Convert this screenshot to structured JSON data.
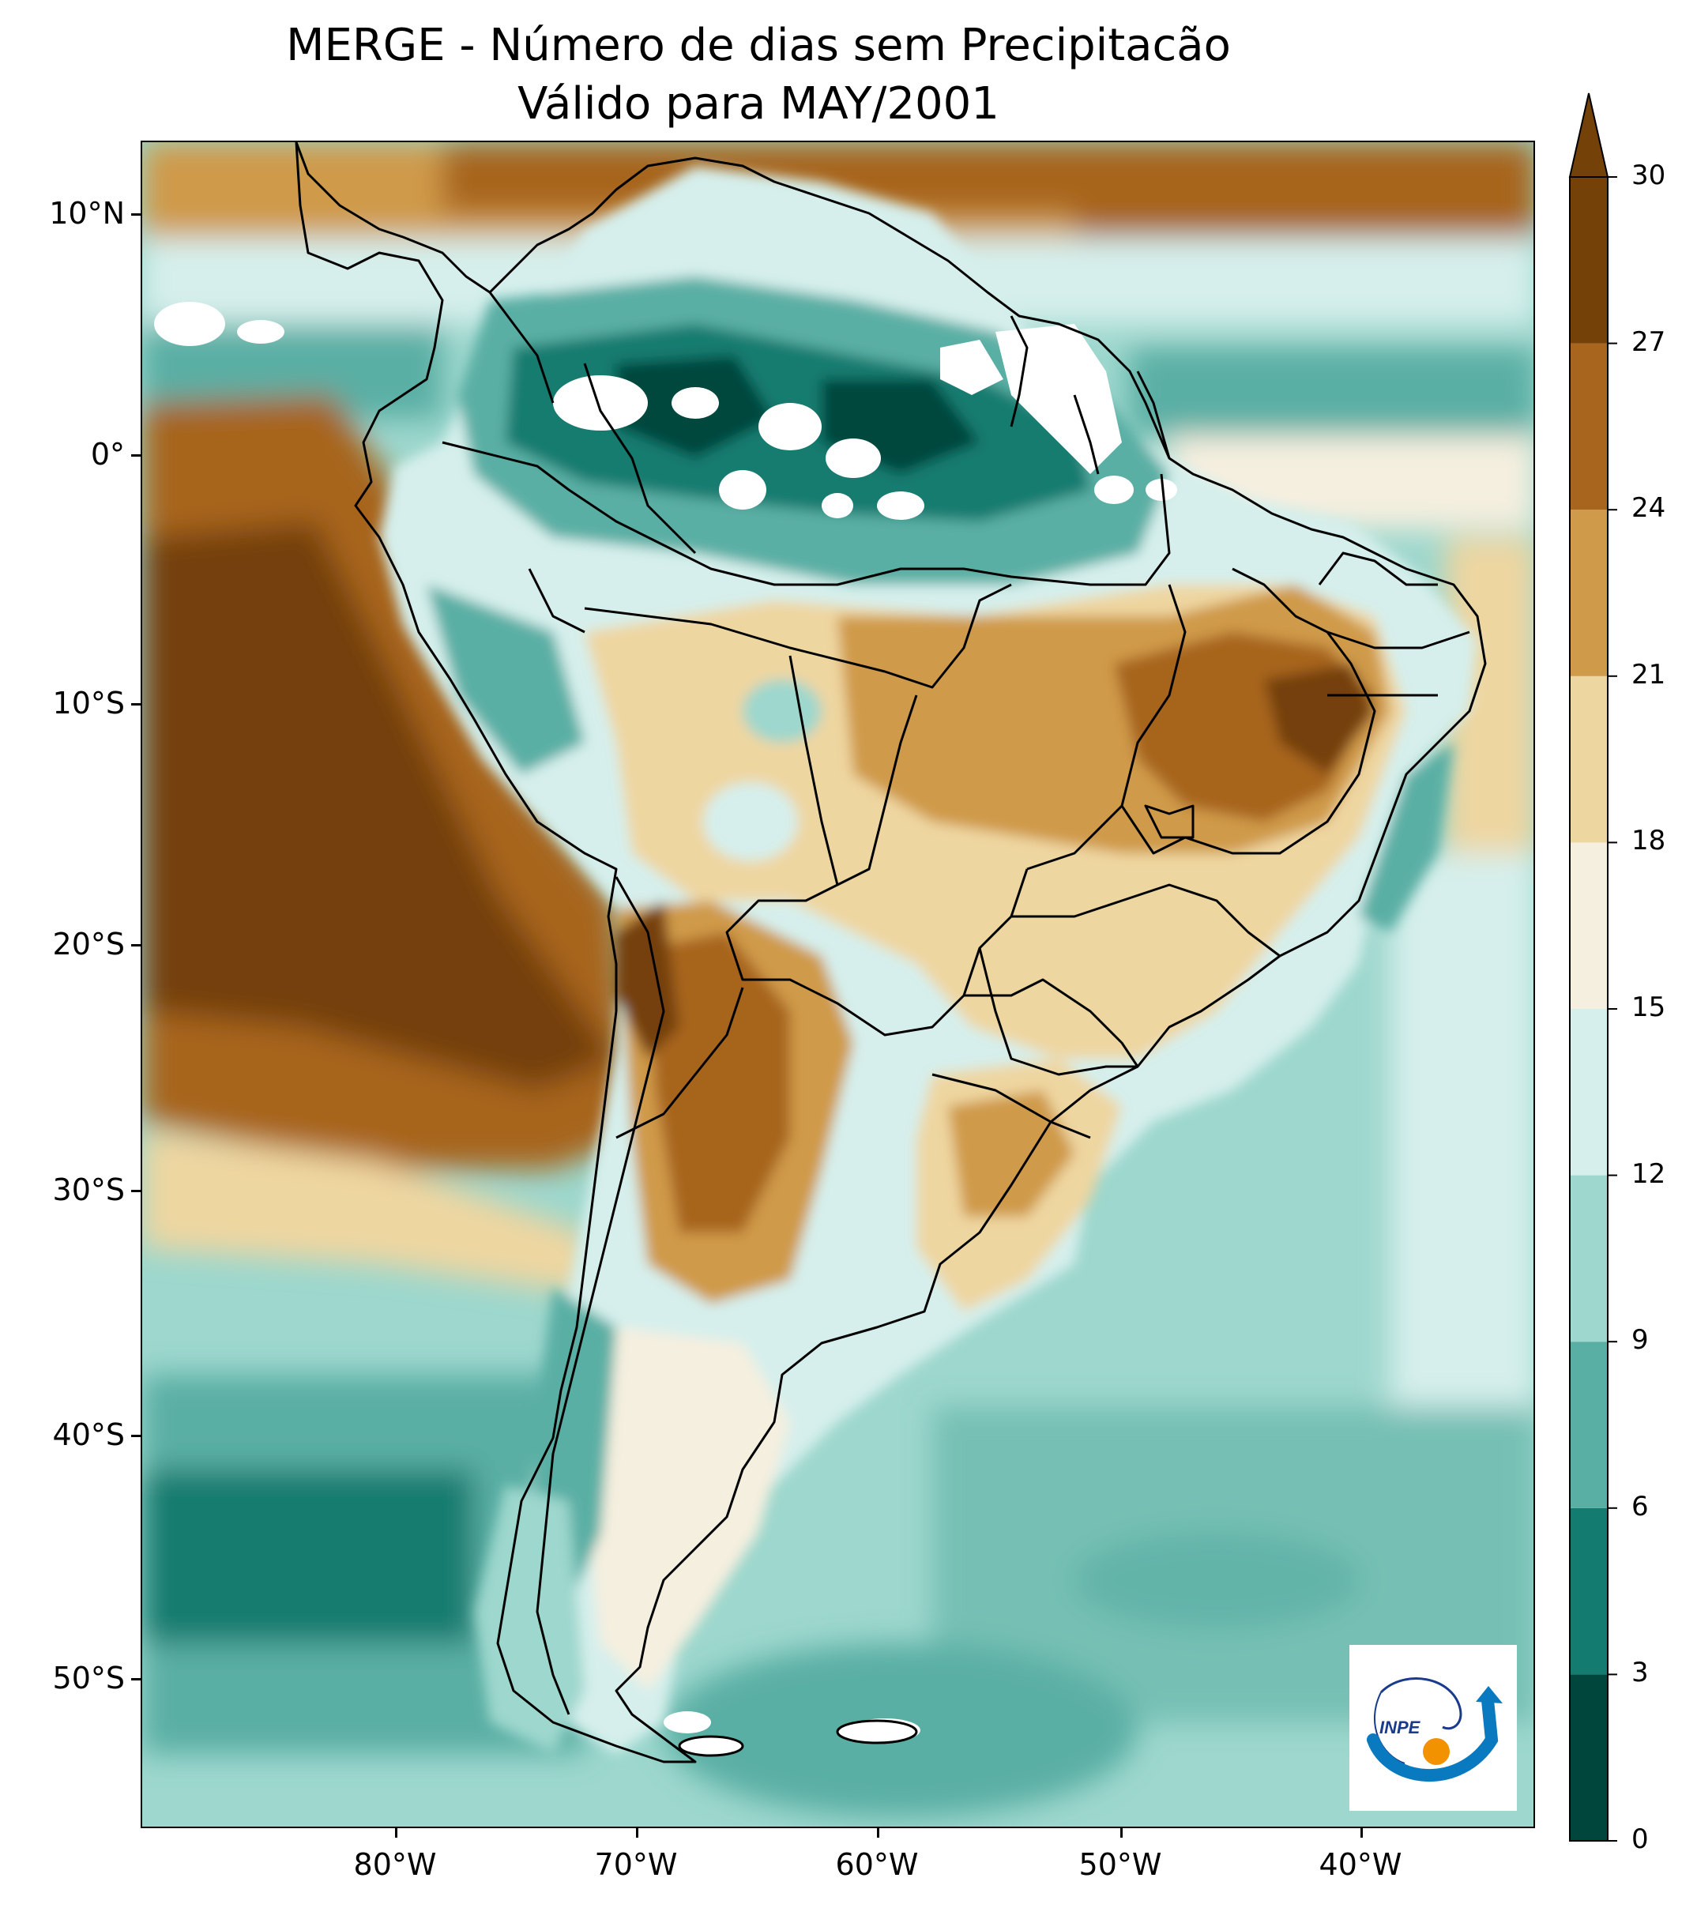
{
  "title": {
    "line1": "MERGE - Número de dias sem Precipitacão",
    "line2": "Válido para MAY/2001"
  },
  "axes": {
    "lat_labels": [
      "10°N",
      "0°",
      "10°S",
      "20°S",
      "30°S",
      "40°S",
      "50°S"
    ],
    "lon_labels": [
      "80°W",
      "70°W",
      "60°W",
      "50°W",
      "40°W"
    ]
  },
  "colorbar": {
    "title": "",
    "levels": [
      0,
      3,
      6,
      9,
      12,
      15,
      18,
      21,
      24,
      27,
      30
    ],
    "labels": [
      "0",
      "3",
      "6",
      "9",
      "12",
      "15",
      "18",
      "21",
      "24",
      "27",
      "30"
    ],
    "colors": [
      "#01463d",
      "#137b70",
      "#5aafa4",
      "#9dd7cd",
      "#d6efec",
      "#f5efdf",
      "#eed6a0",
      "#cf9a4a",
      "#a7651e",
      "#744109"
    ],
    "extend": "max"
  },
  "logo": {
    "text": "INPE"
  },
  "palette": {
    "water_dark": "#137b70",
    "water_mid": "#5aafa4",
    "water_light": "#9dd7cd",
    "pale": "#d6efec",
    "cream": "#f5efdf",
    "tan": "#eed6a0",
    "brown_light": "#cf9a4a",
    "brown": "#a7651e",
    "brown_dark": "#744109"
  }
}
